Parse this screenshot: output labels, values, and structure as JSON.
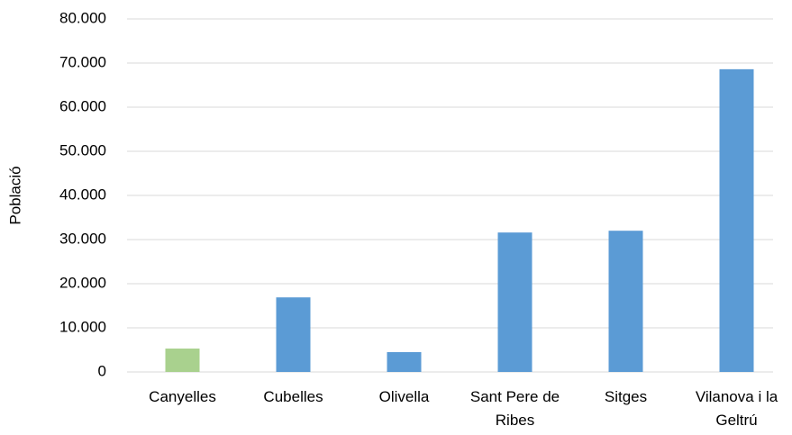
{
  "chart_data": {
    "type": "bar",
    "y_label": "Població",
    "categories": [
      "Canyelles",
      "Cubelles",
      "Olivella",
      "Sant Pere de Ribes",
      "Sitges",
      "Vilanova i la Geltrú"
    ],
    "values": [
      5300,
      16900,
      4500,
      31600,
      32000,
      68600
    ],
    "colors": [
      "#a9d18e",
      "#5b9bd5",
      "#5b9bd5",
      "#5b9bd5",
      "#5b9bd5",
      "#5b9bd5"
    ],
    "ylim": [
      0,
      80000
    ],
    "yticks": [
      0,
      {
        "value": 10000,
        "label": "10.000"
      },
      {
        "value": 20000,
        "label": "20.000"
      },
      {
        "value": 30000,
        "label": "30.000"
      },
      {
        "value": 40000,
        "label": "40.000"
      },
      {
        "value": 50000,
        "label": "50.000"
      },
      {
        "value": 60000,
        "label": "60.000"
      },
      {
        "value": 70000,
        "label": "70.000"
      },
      {
        "value": 80000,
        "label": "80.000"
      }
    ],
    "grid": true
  }
}
